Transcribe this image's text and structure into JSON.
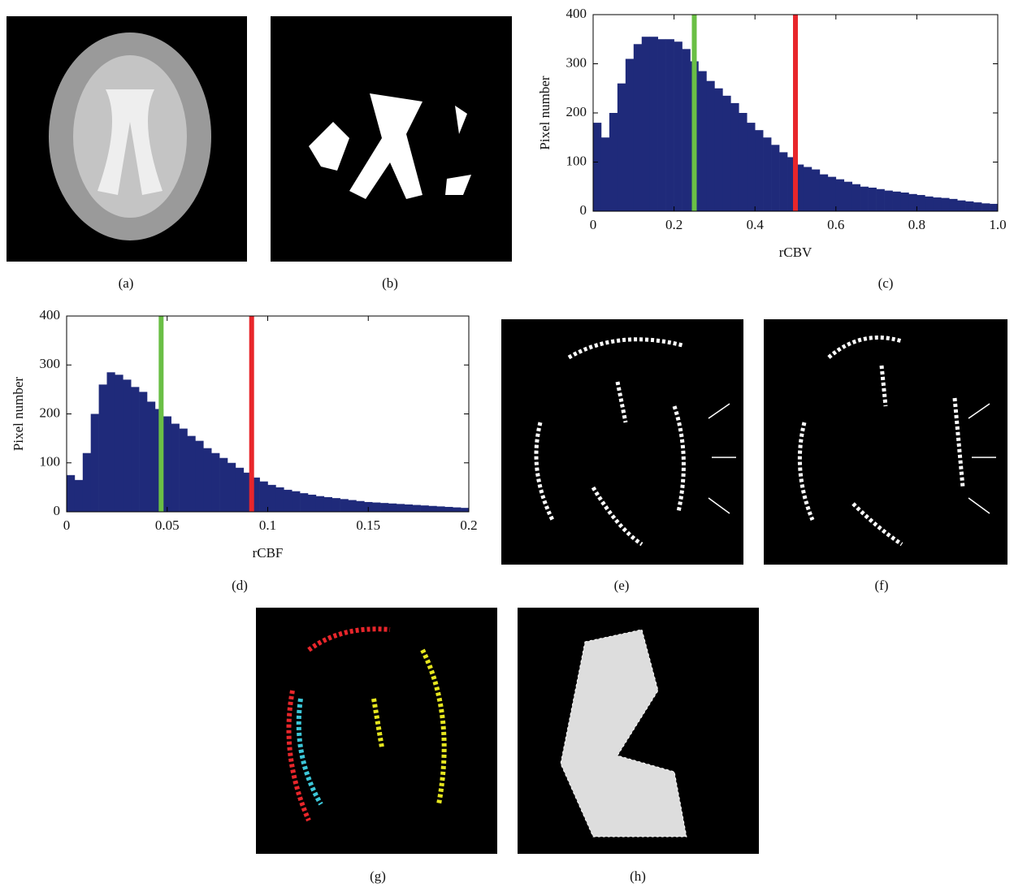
{
  "panel_labels": [
    "(a)",
    "(b)",
    "(c)",
    "(d)",
    "(e)",
    "(f)",
    "(g)",
    "(h)"
  ],
  "chart_data": [
    {
      "type": "histogram",
      "xlabel": "rCBV",
      "ylabel": "Pixel number",
      "color": "#1f2a7a",
      "bins": [
        0,
        0.02,
        0.04,
        0.06,
        0.08,
        0.1,
        0.12,
        0.14,
        0.16,
        0.18,
        0.2,
        0.22,
        0.24,
        0.26,
        0.28,
        0.3,
        0.32,
        0.34,
        0.36,
        0.38,
        0.4,
        0.42,
        0.44,
        0.46,
        0.48,
        0.5,
        0.52,
        0.54,
        0.56,
        0.58,
        0.6,
        0.62,
        0.64,
        0.66,
        0.68,
        0.7,
        0.72,
        0.74,
        0.76,
        0.78,
        0.8,
        0.82,
        0.84,
        0.86,
        0.88,
        0.9,
        0.92,
        0.94,
        0.96,
        0.98,
        1
      ],
      "counts": [
        180,
        150,
        200,
        260,
        310,
        340,
        355,
        355,
        350,
        350,
        345,
        330,
        305,
        285,
        265,
        250,
        235,
        220,
        200,
        180,
        165,
        150,
        135,
        120,
        110,
        95,
        90,
        85,
        75,
        70,
        65,
        60,
        55,
        50,
        48,
        45,
        42,
        40,
        38,
        35,
        33,
        30,
        28,
        27,
        25,
        22,
        20,
        18,
        16,
        15
      ],
      "vlines": [
        {
          "value": 0.25,
          "color": "#6abf45"
        },
        {
          "value": 0.5,
          "color": "#e8262b"
        }
      ],
      "xlim": [
        0,
        1
      ],
      "xticks": [
        0,
        0.2,
        0.4,
        0.6,
        0.8,
        {
          "value": 1,
          "label": "1.0"
        }
      ],
      "ylim": [
        0,
        400
      ],
      "yticks": [
        0,
        100,
        200,
        300,
        400
      ]
    },
    {
      "type": "histogram",
      "xlabel": "rCBF",
      "ylabel": "Pixel number",
      "color": "#1f2a7a",
      "bins": [
        0,
        0.004,
        0.008,
        0.012,
        0.016,
        0.02,
        0.024,
        0.028,
        0.032,
        0.036,
        0.04,
        0.044,
        0.048,
        0.052,
        0.056,
        0.06,
        0.064,
        0.068,
        0.072,
        0.076,
        0.08,
        0.084,
        0.088,
        0.092,
        0.096,
        0.1,
        0.104,
        0.108,
        0.112,
        0.116,
        0.12,
        0.124,
        0.128,
        0.132,
        0.136,
        0.14,
        0.144,
        0.148,
        0.152,
        0.156,
        0.16,
        0.164,
        0.168,
        0.172,
        0.176,
        0.18,
        0.184,
        0.188,
        0.192,
        0.196,
        0.2
      ],
      "counts": [
        75,
        65,
        120,
        200,
        260,
        285,
        280,
        270,
        255,
        245,
        225,
        210,
        195,
        180,
        170,
        155,
        145,
        130,
        120,
        110,
        100,
        90,
        80,
        70,
        62,
        55,
        50,
        45,
        42,
        38,
        35,
        32,
        30,
        28,
        26,
        24,
        22,
        20,
        19,
        18,
        17,
        16,
        15,
        14,
        13,
        12,
        11,
        10,
        9,
        8
      ],
      "vlines": [
        {
          "value": 0.047,
          "color": "#6abf45"
        },
        {
          "value": 0.092,
          "color": "#e8262b"
        }
      ],
      "xlim": [
        0,
        0.2
      ],
      "xticks": [
        0,
        0.05,
        0.1,
        0.15,
        0.2
      ],
      "ylim": [
        0,
        400
      ],
      "yticks": [
        0,
        100,
        200,
        300,
        400
      ]
    }
  ]
}
